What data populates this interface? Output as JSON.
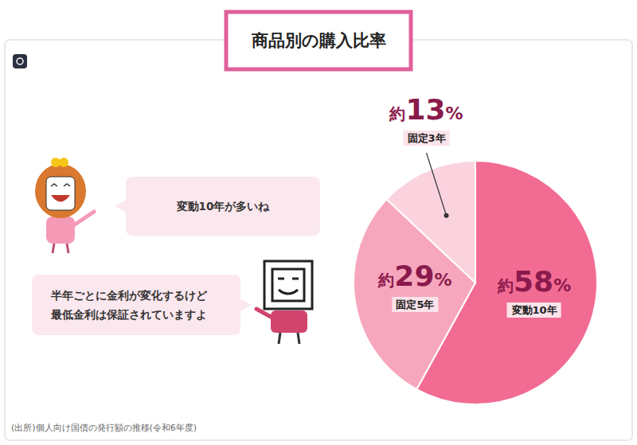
{
  "chart_data": {
    "type": "pie",
    "title": "商品別の購入比率",
    "categories": [
      "変動10年",
      "固定5年",
      "固定3年"
    ],
    "values": [
      58,
      29,
      13
    ],
    "value_labels": [
      "約58%",
      "約29%",
      "約13%"
    ],
    "colors": [
      "#f26b93",
      "#f7a7bd",
      "#fbd3de"
    ],
    "data_labels": true,
    "annotations": [
      "変動10年が多いね",
      "半年ごとに金利が変化するけど\n最低金利は保証されていますよ"
    ],
    "source": "(出所)個人向け国債の発行額の推移(令和6年度)"
  }
}
